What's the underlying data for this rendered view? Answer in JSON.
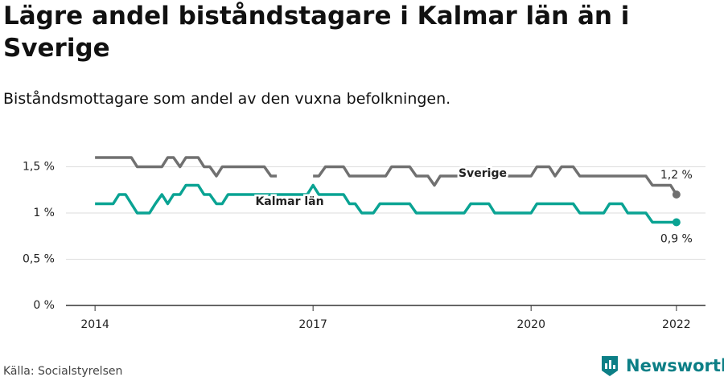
{
  "chart_data": {
    "type": "line",
    "title": "Lägre andel biståndstagare i Kalmar län än i Sverige",
    "subtitle": "Biståndsmottagare som andel av den vuxna befolkningen.",
    "source": "Källa: Socialstyrelsen",
    "brand": "Newsworthy",
    "x": [
      2014,
      2014.08,
      2014.17,
      2014.25,
      2014.33,
      2014.42,
      2014.5,
      2014.58,
      2014.67,
      2014.75,
      2014.83,
      2014.92,
      2015,
      2015.08,
      2015.17,
      2015.25,
      2015.33,
      2015.42,
      2015.5,
      2015.58,
      2015.67,
      2015.75,
      2015.83,
      2015.92,
      2016,
      2016.08,
      2016.17,
      2016.25,
      2016.33,
      2016.42,
      2016.5,
      2016.58,
      2016.67,
      2016.75,
      2016.83,
      2016.92,
      2017,
      2017.08,
      2017.17,
      2017.25,
      2017.33,
      2017.42,
      2017.5,
      2017.58,
      2017.67,
      2017.75,
      2017.83,
      2017.92,
      2018,
      2018.08,
      2018.17,
      2018.25,
      2018.33,
      2018.42,
      2018.5,
      2018.58,
      2018.67,
      2018.75,
      2018.83,
      2018.92,
      2019,
      2019.08,
      2019.17,
      2019.25,
      2019.33,
      2019.42,
      2019.5,
      2019.58,
      2019.67,
      2019.75,
      2019.83,
      2019.92,
      2020,
      2020.08,
      2020.17,
      2020.25,
      2020.33,
      2020.42,
      2020.5,
      2020.58,
      2020.67,
      2020.75,
      2020.83,
      2020.92,
      2021,
      2021.08,
      2021.17,
      2021.25,
      2021.33,
      2021.42,
      2021.5,
      2021.58,
      2021.67,
      2021.75,
      2021.83,
      2021.92,
      2022
    ],
    "series": [
      {
        "name": "Sverige",
        "color": "#707070",
        "end_label": "1,2 %",
        "values": [
          1.6,
          1.6,
          1.6,
          1.6,
          1.6,
          1.6,
          1.6,
          1.5,
          1.5,
          1.5,
          1.5,
          1.5,
          1.6,
          1.6,
          1.5,
          1.6,
          1.6,
          1.6,
          1.5,
          1.5,
          1.4,
          1.5,
          1.5,
          1.5,
          1.5,
          1.5,
          1.5,
          1.5,
          1.5,
          1.4,
          1.4,
          null,
          null,
          null,
          null,
          null,
          1.4,
          1.4,
          1.5,
          1.5,
          1.5,
          1.5,
          1.4,
          1.4,
          1.4,
          1.4,
          1.4,
          1.4,
          1.4,
          1.5,
          1.5,
          1.5,
          1.5,
          1.4,
          1.4,
          1.4,
          1.3,
          1.4,
          1.4,
          1.4,
          1.4,
          1.4,
          1.4,
          1.4,
          1.4,
          1.4,
          1.4,
          1.4,
          1.4,
          1.4,
          1.4,
          1.4,
          1.4,
          1.5,
          1.5,
          1.5,
          1.4,
          1.5,
          1.5,
          1.5,
          1.4,
          1.4,
          1.4,
          1.4,
          1.4,
          1.4,
          1.4,
          1.4,
          1.4,
          1.4,
          1.4,
          1.4,
          1.3,
          1.3,
          1.3,
          1.3,
          1.2
        ]
      },
      {
        "name": "Kalmar län",
        "color": "#0aa393",
        "end_label": "0,9 %",
        "values": [
          1.1,
          1.1,
          1.1,
          1.1,
          1.2,
          1.2,
          1.1,
          1,
          1,
          1,
          1.1,
          1.2,
          1.1,
          1.2,
          1.2,
          1.3,
          1.3,
          1.3,
          1.2,
          1.2,
          1.1,
          1.1,
          1.2,
          1.2,
          1.2,
          1.2,
          1.2,
          1.2,
          1.2,
          1.2,
          1.2,
          1.2,
          1.2,
          1.2,
          1.2,
          1.2,
          1.3,
          1.2,
          1.2,
          1.2,
          1.2,
          1.2,
          1.1,
          1.1,
          1,
          1,
          1,
          1.1,
          1.1,
          1.1,
          1.1,
          1.1,
          1.1,
          1,
          1,
          1,
          1,
          1,
          1,
          1,
          1,
          1,
          1.1,
          1.1,
          1.1,
          1.1,
          1,
          1,
          1,
          1,
          1,
          1,
          1,
          1.1,
          1.1,
          1.1,
          1.1,
          1.1,
          1.1,
          1.1,
          1,
          1,
          1,
          1,
          1,
          1.1,
          1.1,
          1.1,
          1,
          1,
          1,
          1,
          0.9,
          0.9,
          0.9,
          0.9,
          0.9
        ]
      }
    ],
    "xlim": [
      2013.6,
      2022.4
    ],
    "xticks": [
      2014,
      2017,
      2020,
      2022
    ],
    "ylim": [
      0,
      1.7
    ],
    "yticks": [
      {
        "value": 0,
        "label": "0 %"
      },
      {
        "value": 0.5,
        "label": "0,5 %"
      },
      {
        "value": 1,
        "label": "1 %"
      },
      {
        "value": 1.5,
        "label": "1,5 %"
      }
    ],
    "grid": true
  }
}
